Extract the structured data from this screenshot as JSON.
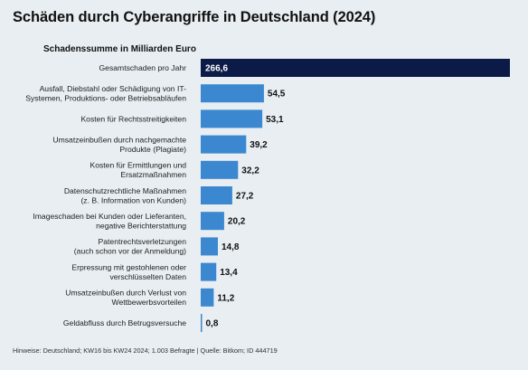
{
  "title": "Schäden durch Cyberangriffe in Deutschland (2024)",
  "footnote": "Hinweise: Deutschland; KW16 bis KW24 2024; 1.003 Befragte | Quelle: Bitkom; ID 444719",
  "colors": {
    "highlight": "#0b1a46",
    "bar": "#3b88d0",
    "background": "#e8eef2"
  },
  "chart_data": {
    "type": "bar",
    "orientation": "horizontal",
    "title": "Schadenssumme in Milliarden Euro",
    "xlabel": "",
    "ylabel": "",
    "xlim": [
      0,
      266.6
    ],
    "grid": false,
    "categories": [
      [
        "Gesamtschaden pro Jahr"
      ],
      [
        "Ausfall, Diebstahl oder Schädigung von IT-",
        "Systemen, Produktions- oder Betriebsabläufen"
      ],
      [
        "Kosten für Rechtsstreitigkeiten"
      ],
      [
        "Umsatzeinbußen durch nachgemachte",
        "Produkte (Plagiate)"
      ],
      [
        "Kosten für Ermittlungen und",
        "Ersatzmaßnahmen"
      ],
      [
        "Datenschutzrechtliche Maßnahmen",
        "(z. B. Information von Kunden)"
      ],
      [
        "Imageschaden bei Kunden oder Lieferanten,",
        "negative Berichterstattung"
      ],
      [
        "Patentrechtsverletzungen",
        "(auch schon vor der Anmeldung)"
      ],
      [
        "Erpressung mit gestohlenen oder",
        "verschlüsselten Daten"
      ],
      [
        "Umsatzeinbußen durch Verlust von",
        "Wettbewerbsvorteilen"
      ],
      [
        "Geldabfluss durch Betrugsversuche"
      ]
    ],
    "values": [
      266.6,
      54.5,
      53.1,
      39.2,
      32.2,
      27.2,
      20.2,
      14.8,
      13.4,
      11.2,
      0.8
    ],
    "value_labels": [
      "266,6",
      "54,5",
      "53,1",
      "39,2",
      "32,2",
      "27,2",
      "20,2",
      "14,8",
      "13,4",
      "11,2",
      "0,8"
    ],
    "highlight_index": 0
  }
}
